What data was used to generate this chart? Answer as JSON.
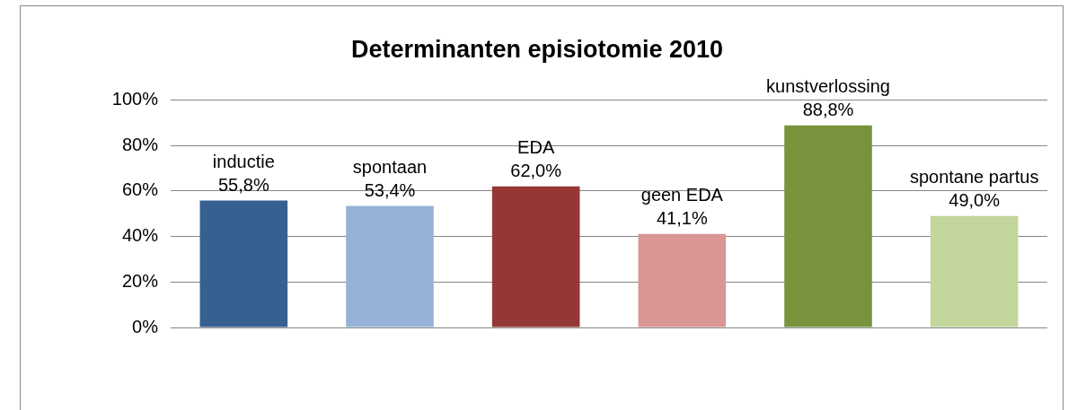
{
  "chart_data": {
    "type": "bar",
    "title": "Determinanten episiotomie 2010",
    "categories": [
      "inductie",
      "spontaan",
      "EDA",
      "geen EDA",
      "kunstverlossing",
      "spontane partus"
    ],
    "values": [
      55.8,
      53.4,
      62.0,
      41.1,
      88.8,
      49.0
    ],
    "colors": [
      "#366092",
      "#95b3d7",
      "#953735",
      "#d99694",
      "#77933c",
      "#c3d69b"
    ],
    "value_labels": [
      "55,8%",
      "53,4%",
      "62,0%",
      "41,1%",
      "88,8%",
      "49,0%"
    ],
    "ylim": [
      0,
      100
    ],
    "yticks": [
      {
        "value": 0,
        "label": "0%"
      },
      {
        "value": 20,
        "label": "20%"
      },
      {
        "value": 40,
        "label": "40%"
      },
      {
        "value": 60,
        "label": "60%"
      },
      {
        "value": 80,
        "label": "80%"
      },
      {
        "value": 100,
        "label": "100%"
      }
    ],
    "grid": "y",
    "legend": false
  }
}
